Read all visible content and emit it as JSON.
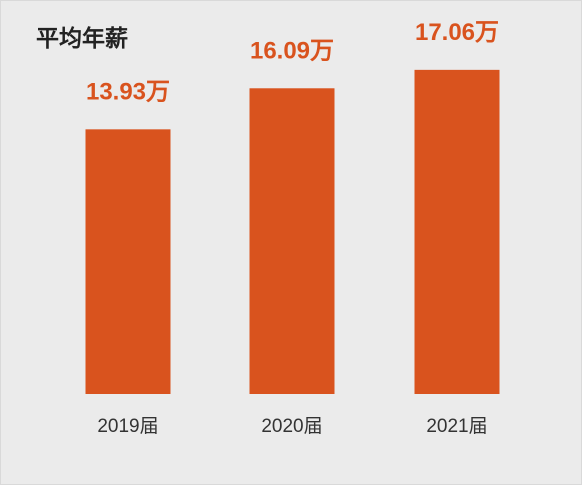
{
  "chart_data": {
    "type": "bar",
    "title": "平均年薪",
    "categories": [
      "2019届",
      "2020届",
      "2021届"
    ],
    "values": [
      13.93,
      16.09,
      17.06
    ],
    "value_labels": [
      "13.93万",
      "16.09万",
      "17.06万"
    ],
    "ylim": [
      0,
      18
    ],
    "grid": false,
    "legend": "none",
    "colors": {
      "bar": "#d9531e",
      "value_label": "#d9531e",
      "background": "#ebebeb",
      "title": "#222222",
      "category_label": "#333333"
    }
  }
}
